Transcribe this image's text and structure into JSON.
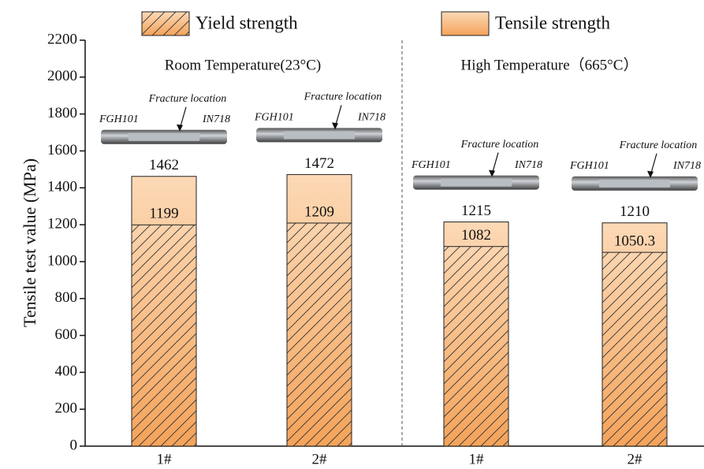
{
  "chart_data": {
    "type": "bar",
    "ylabel": "Tensile test value (MPa)",
    "categories": [
      "1#",
      "2#",
      "1#",
      "2#"
    ],
    "group_labels": [
      "Room Temperature(23°C)",
      "High Temperature（665°C）"
    ],
    "series": [
      {
        "name": "Yield strength",
        "color": "#f5a35c",
        "hatch": true,
        "values": [
          1199,
          1209,
          1082,
          1050.3
        ]
      },
      {
        "name": "Tensile strength",
        "color": "#f7b878",
        "hatch": false,
        "values": [
          1462,
          1472,
          1215,
          1210
        ]
      }
    ],
    "specimens": [
      {
        "left": "FGH101",
        "right": "IN718",
        "fracture": "Fracture location"
      },
      {
        "left": "FGH101",
        "right": "IN718",
        "fracture": "Fracture location"
      },
      {
        "left": "FGH101",
        "right": "IN718",
        "fracture": "Fracture location"
      },
      {
        "left": "FGH101",
        "right": "IN718",
        "fracture": "Fracture location"
      }
    ],
    "ylim": [
      0,
      2200
    ],
    "yticks": [
      0,
      200,
      400,
      600,
      800,
      1000,
      1200,
      1400,
      1600,
      1800,
      2000,
      2200
    ]
  }
}
